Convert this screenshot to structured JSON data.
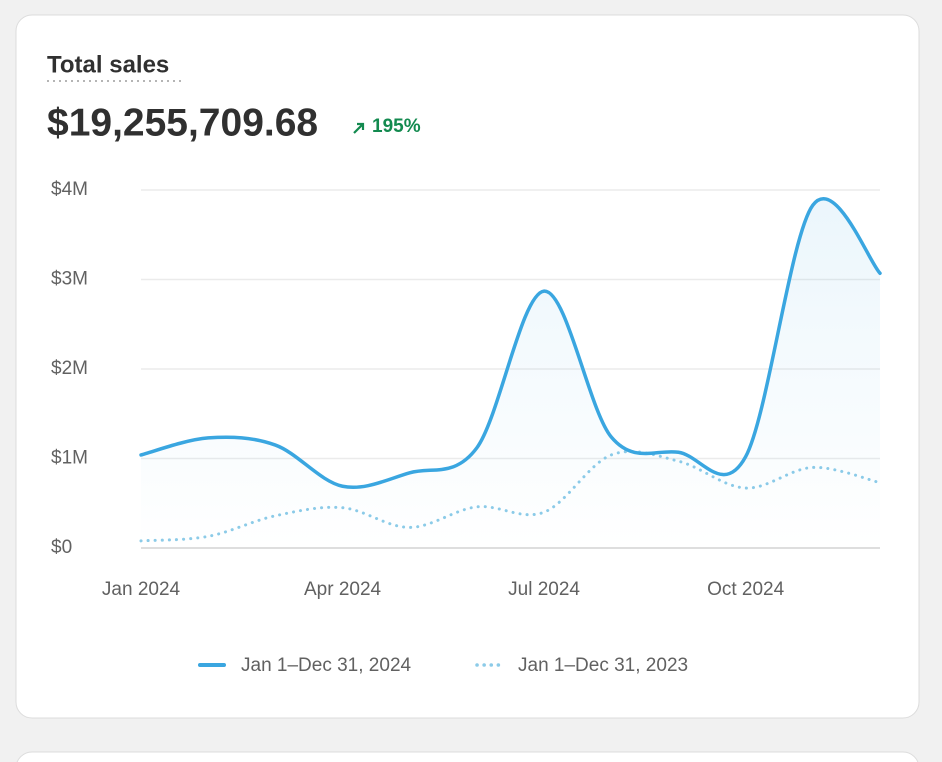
{
  "card": {
    "title": "Total sales",
    "total": "$19,255,709.68",
    "change": "195%"
  },
  "chart_data": {
    "type": "line",
    "categories": [
      "Jan 2024",
      null,
      null,
      "Apr 2024",
      null,
      null,
      "Jul 2024",
      null,
      null,
      "Oct 2024",
      null,
      null
    ],
    "series": [
      {
        "name": "Jan 1–Dec 31, 2024",
        "color": "#3aa6e0",
        "style": "solid",
        "values": [
          1.04,
          1.23,
          1.15,
          0.69,
          0.84,
          1.12,
          2.87,
          1.24,
          1.07,
          1.02,
          3.83,
          3.07
        ]
      },
      {
        "name": "Jan 1–Dec 31, 2023",
        "color": "#8ccbe8",
        "style": "dotted",
        "values": [
          0.08,
          0.13,
          0.36,
          0.45,
          0.23,
          0.46,
          0.4,
          1.04,
          0.97,
          0.67,
          0.9,
          0.73
        ]
      }
    ],
    "ylim": [
      0,
      4
    ],
    "yticks": [
      {
        "value": 0,
        "label": "$0"
      },
      {
        "value": 1,
        "label": "$1M"
      },
      {
        "value": 2,
        "label": "$2M"
      },
      {
        "value": 3,
        "label": "$3M"
      },
      {
        "value": 4,
        "label": "$4M"
      }
    ],
    "grid": true
  }
}
